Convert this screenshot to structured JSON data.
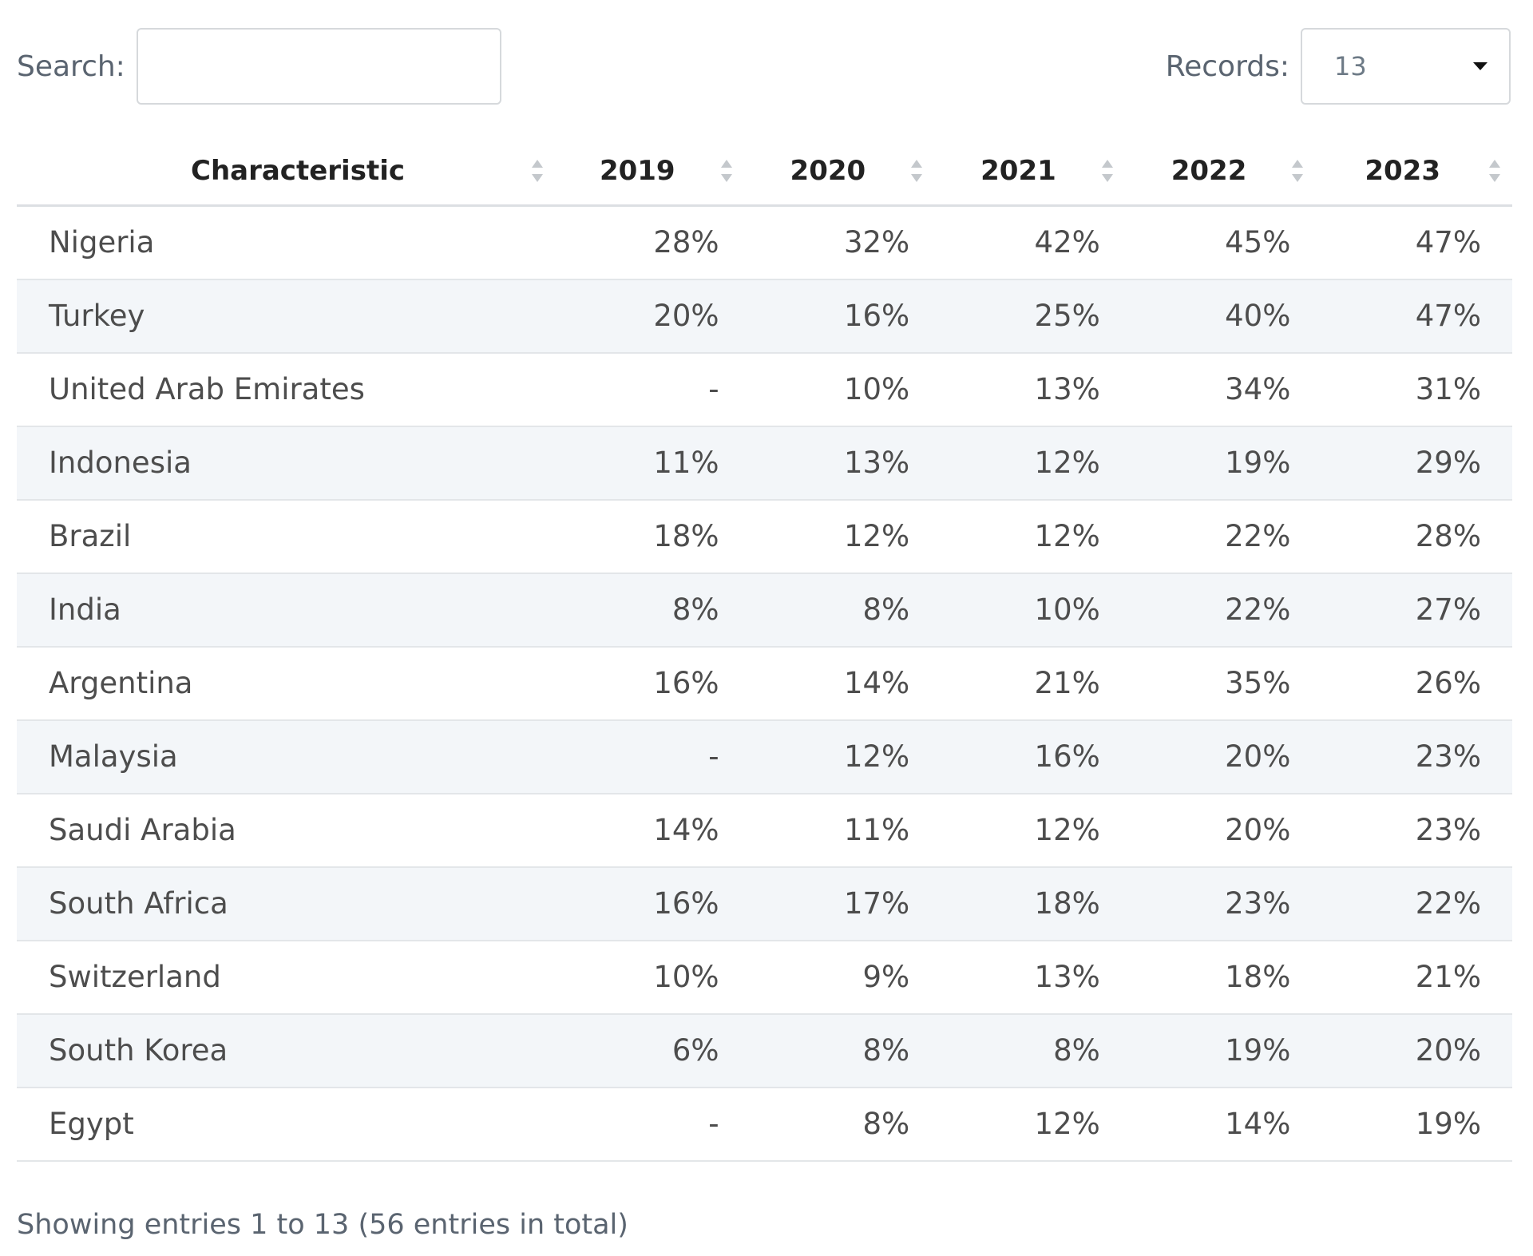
{
  "controls": {
    "search_label": "Search:",
    "search_value": "",
    "records_label": "Records:",
    "records_value": "13"
  },
  "table": {
    "headers": [
      "Characteristic",
      "2019",
      "2020",
      "2021",
      "2022",
      "2023"
    ],
    "rows": [
      [
        "Nigeria",
        "28%",
        "32%",
        "42%",
        "45%",
        "47%"
      ],
      [
        "Turkey",
        "20%",
        "16%",
        "25%",
        "40%",
        "47%"
      ],
      [
        "United Arab Emirates",
        "-",
        "10%",
        "13%",
        "34%",
        "31%"
      ],
      [
        "Indonesia",
        "11%",
        "13%",
        "12%",
        "19%",
        "29%"
      ],
      [
        "Brazil",
        "18%",
        "12%",
        "12%",
        "22%",
        "28%"
      ],
      [
        "India",
        "8%",
        "8%",
        "10%",
        "22%",
        "27%"
      ],
      [
        "Argentina",
        "16%",
        "14%",
        "21%",
        "35%",
        "26%"
      ],
      [
        "Malaysia",
        "-",
        "12%",
        "16%",
        "20%",
        "23%"
      ],
      [
        "Saudi Arabia",
        "14%",
        "11%",
        "12%",
        "20%",
        "23%"
      ],
      [
        "South Africa",
        "16%",
        "17%",
        "18%",
        "23%",
        "22%"
      ],
      [
        "Switzerland",
        "10%",
        "9%",
        "13%",
        "18%",
        "21%"
      ],
      [
        "South Korea",
        "6%",
        "8%",
        "8%",
        "19%",
        "20%"
      ],
      [
        "Egypt",
        "-",
        "8%",
        "12%",
        "14%",
        "19%"
      ]
    ]
  },
  "footer": {
    "info": "Showing entries 1 to 13 (56 entries in total)"
  },
  "colors": {
    "stripe": "#f3f6f9",
    "border": "#e3e6e9",
    "text": "#4d4d4d",
    "header_text": "#222222"
  }
}
